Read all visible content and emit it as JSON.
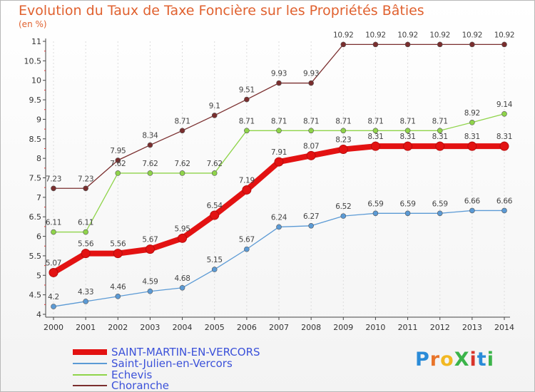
{
  "chart_data": {
    "type": "line",
    "title": "Evolution du Taux de Taxe Foncière sur les Propriétés Bâties",
    "unit_label": "(en %)",
    "categories": [
      "2000",
      "2001",
      "2002",
      "2003",
      "2004",
      "2005",
      "2006",
      "2007",
      "2008",
      "2009",
      "2010",
      "2011",
      "2012",
      "2013",
      "2014"
    ],
    "y_ticks": [
      "4",
      "4.5",
      "5",
      "5.5",
      "6",
      "6.5",
      "7",
      "7.5",
      "8",
      "8.5",
      "9",
      "9.5",
      "10",
      "10.5",
      "11"
    ],
    "ylim": [
      4,
      11
    ],
    "series": [
      {
        "name": "SAINT-MARTIN-EN-VERCORS",
        "color": "#e31212",
        "values": [
          5.07,
          5.56,
          5.56,
          5.67,
          5.95,
          6.54,
          7.19,
          7.91,
          8.07,
          8.23,
          8.31,
          8.31,
          8.31,
          8.31,
          8.31
        ]
      },
      {
        "name": "Saint-Julien-en-Vercors",
        "color": "#5b9ad5",
        "values": [
          4.2,
          4.33,
          4.46,
          4.59,
          4.68,
          5.15,
          5.67,
          6.24,
          6.27,
          6.52,
          6.59,
          6.59,
          6.59,
          6.66,
          6.66
        ]
      },
      {
        "name": "Echevis",
        "color": "#8fd44a",
        "values": [
          6.11,
          6.11,
          7.62,
          7.62,
          7.62,
          7.62,
          8.71,
          8.71,
          8.71,
          8.71,
          8.71,
          8.71,
          8.71,
          8.92,
          9.14
        ]
      },
      {
        "name": "Choranche",
        "color": "#7a2e2e",
        "values": [
          7.23,
          7.23,
          7.95,
          8.34,
          8.71,
          9.1,
          9.51,
          9.93,
          9.93,
          10.92,
          10.92,
          10.92,
          10.92,
          10.92,
          10.92
        ]
      }
    ],
    "labels": {
      "SAINT-MARTIN-EN-VERCORS": [
        "5.07",
        "5.56",
        "5.56",
        "5.67",
        "5.95",
        "6.54",
        "7.19",
        "7.91",
        "8.07",
        "8.23",
        "8.31",
        "8.31",
        "8.31",
        "8.31",
        "8.31"
      ],
      "Saint-Julien-en-Vercors": [
        "4.2",
        "4.33",
        "4.46",
        "4.59",
        "4.68",
        "5.15",
        "5.67",
        "6.24",
        "6.27",
        "6.52",
        "6.59",
        "6.59",
        "6.59",
        "6.66",
        "6.66"
      ],
      "Echevis": [
        "6.11",
        "6.11",
        "7.62",
        "7.62",
        "7.62",
        "7.62",
        "8.71",
        "8.71",
        "8.71",
        "8.71",
        "8.71",
        "8.71",
        "8.71",
        "8.92",
        "9.14"
      ],
      "Choranche": [
        "7.23",
        "7.23",
        "7.95",
        "8.34",
        "8.71",
        "9.1",
        "9.51",
        "9.93",
        "9.93",
        "10.92",
        "10.92",
        "10.92",
        "10.92",
        "10.92",
        "10.92"
      ]
    }
  },
  "logo": {
    "text": "ProXiti",
    "colors": [
      "#2a8bd8",
      "#e8742a",
      "#f2b822",
      "#3bb44a",
      "#d8342a",
      "#2a8bd8",
      "#3bb44a"
    ]
  }
}
